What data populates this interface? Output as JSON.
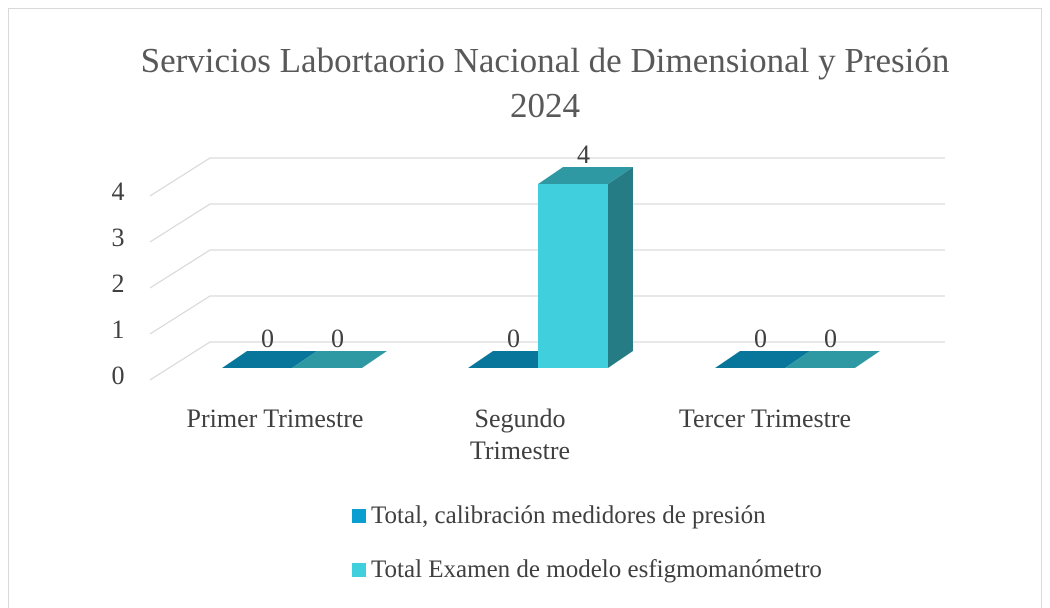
{
  "chart_data": {
    "type": "bar3d",
    "title": "Servicios Labortaorio Nacional de Dimensional y Presión 2024",
    "categories": [
      "Primer Trimestre",
      "Segundo Trimestre",
      "Tercer Trimestre"
    ],
    "series": [
      {
        "name": "Total, calibración medidores de presión",
        "color": "#0a9fd0",
        "values": [
          0,
          0,
          0
        ]
      },
      {
        "name": "Total Examen de modelo esfigmomanómetro",
        "color": "#40cfdc",
        "values": [
          0,
          4,
          0
        ]
      }
    ],
    "ylim": [
      0,
      4
    ],
    "yticks": [
      0,
      1,
      2,
      3,
      4
    ],
    "grid": true,
    "legend": "bottom"
  }
}
